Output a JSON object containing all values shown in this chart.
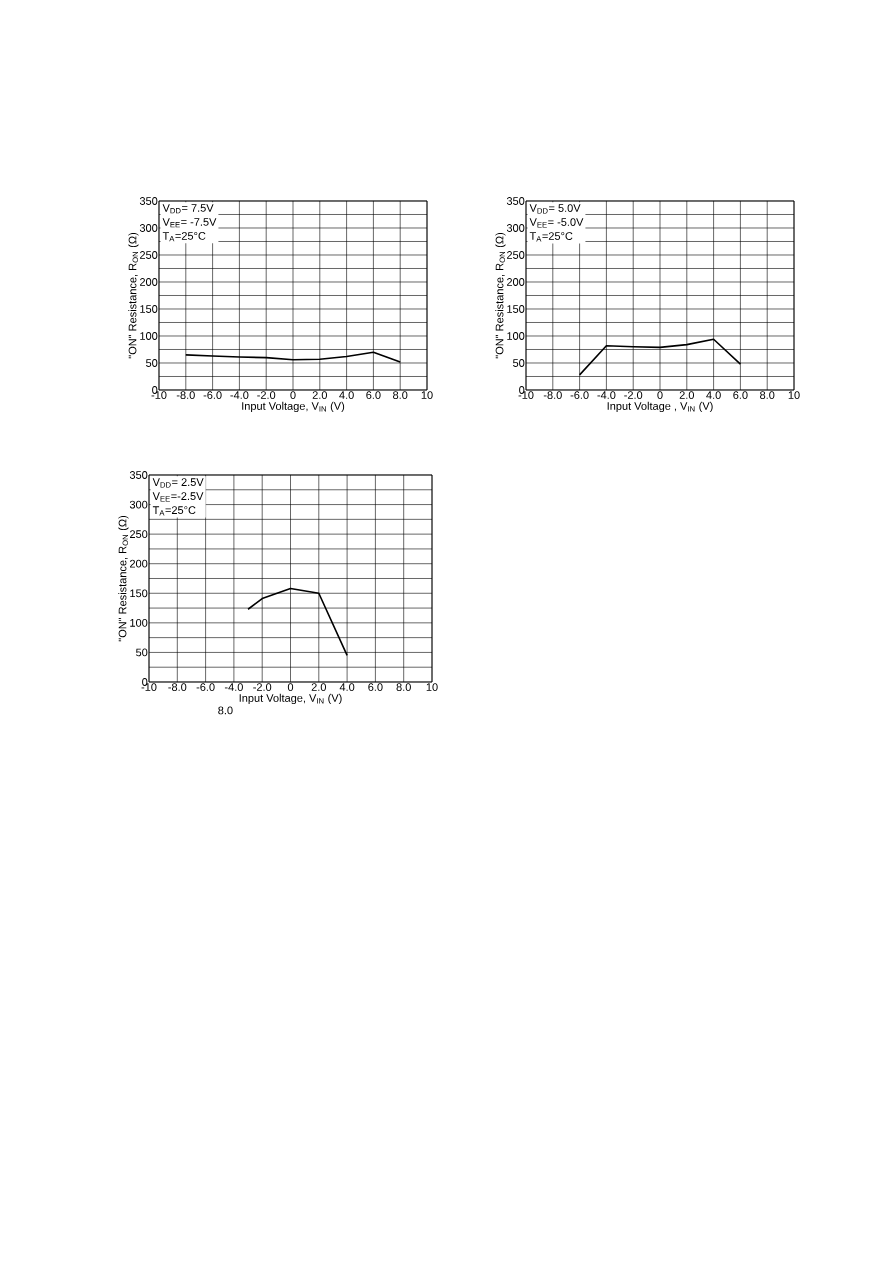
{
  "chart_data": [
    {
      "type": "line",
      "xlabel": "Input Voltage, V$_{IN}$ (V)",
      "ylabel": "\"ON\"  Resistance, R$_{ON}$ (Ω)",
      "annotations": [
        "V$_{DD}$= 7.5V",
        "V$_{EE}$= -7.5V",
        "T$_{A}$=25°C"
      ],
      "color": "#000000",
      "grid": true,
      "x": [
        -8,
        -6,
        -4,
        -2,
        0,
        2,
        4,
        6,
        8
      ],
      "values": [
        65,
        63,
        61,
        60,
        56,
        57,
        62,
        70,
        52
      ],
      "xlim": [
        -10,
        10
      ],
      "ylim": [
        0,
        350
      ],
      "xticks": [
        -10,
        {
          "value": -8,
          "label": "-8.0"
        },
        {
          "value": -6,
          "label": "-6.0"
        },
        {
          "value": -4,
          "label": "-4.0"
        },
        {
          "value": -2,
          "label": "-2.0"
        },
        0,
        {
          "value": 2,
          "label": "2.0"
        },
        {
          "value": 4,
          "label": "4.0"
        },
        {
          "value": 6,
          "label": "6.0"
        },
        {
          "value": 8,
          "label": "8.0"
        },
        10
      ],
      "yticks": [
        0,
        {
          "value": 25,
          "label": null
        },
        50,
        {
          "value": 75,
          "label": null
        },
        100,
        {
          "value": 125,
          "label": null
        },
        150,
        {
          "value": 175,
          "label": null
        },
        200,
        {
          "value": 225,
          "label": null
        },
        250,
        {
          "value": 275,
          "label": null
        },
        300,
        {
          "value": 325,
          "label": null
        },
        350
      ]
    },
    {
      "type": "line",
      "xlabel": "Input Voltage , V$_{IN}$ (V)",
      "ylabel": "\"ON\"  Resistance, R$_{ON}$ (Ω)",
      "annotations": [
        "V$_{DD}$= 5.0V",
        "V$_{EE}$= -5.0V",
        "T$_{A}$=25°C"
      ],
      "color": "#000000",
      "grid": true,
      "x": [
        -6,
        -4,
        -2,
        0,
        2,
        4,
        6
      ],
      "values": [
        28,
        82,
        80,
        79,
        84,
        94,
        48
      ],
      "xlim": [
        -10,
        10
      ],
      "ylim": [
        0,
        350
      ],
      "xticks": [
        -10,
        {
          "value": -8,
          "label": "-8.0"
        },
        {
          "value": -6,
          "label": "-6.0"
        },
        {
          "value": -4,
          "label": "-4.0"
        },
        {
          "value": -2,
          "label": "-2.0"
        },
        0,
        {
          "value": 2,
          "label": "2.0"
        },
        {
          "value": 4,
          "label": "4.0"
        },
        {
          "value": 6,
          "label": "6.0"
        },
        {
          "value": 8,
          "label": "8.0"
        },
        10
      ],
      "yticks": [
        0,
        {
          "value": 25,
          "label": null
        },
        50,
        {
          "value": 75,
          "label": null
        },
        100,
        {
          "value": 125,
          "label": null
        },
        150,
        {
          "value": 175,
          "label": null
        },
        200,
        {
          "value": 225,
          "label": null
        },
        250,
        {
          "value": 275,
          "label": null
        },
        300,
        {
          "value": 325,
          "label": null
        },
        350
      ]
    },
    {
      "type": "line",
      "xlabel": "Input Voltage, V$_{IN}$ (V)",
      "ylabel": "\"ON\" Resistance, R$_{ON}$ (Ω)",
      "annotations": [
        "V$_{DD}$= 2.5V",
        "V$_{EE}$=-2.5V",
        "T$_{A}$=25°C",
        "8.0"
      ],
      "color": "#000000",
      "grid": true,
      "x": [
        -3,
        -2,
        0,
        2,
        4
      ],
      "values": [
        123,
        141,
        158,
        150,
        45
      ],
      "xlim": [
        -10,
        10
      ],
      "ylim": [
        0,
        350
      ],
      "xticks": [
        -10,
        {
          "value": -8,
          "label": "-8.0"
        },
        {
          "value": -6,
          "label": "-6.0"
        },
        {
          "value": -4,
          "label": "-4.0"
        },
        {
          "value": -2,
          "label": "-2.0"
        },
        0,
        {
          "value": 2,
          "label": "2.0"
        },
        {
          "value": 4,
          "label": "4.0"
        },
        {
          "value": 6,
          "label": "6.0"
        },
        {
          "value": 8,
          "label": "8.0"
        },
        10
      ],
      "yticks": [
        0,
        {
          "value": 25,
          "label": null
        },
        50,
        {
          "value": 75,
          "label": null
        },
        100,
        {
          "value": 125,
          "label": null
        },
        150,
        {
          "value": 175,
          "label": null
        },
        200,
        {
          "value": 225,
          "label": null
        },
        250,
        {
          "value": 275,
          "label": null
        },
        300,
        {
          "value": 325,
          "label": null
        },
        350
      ]
    }
  ]
}
